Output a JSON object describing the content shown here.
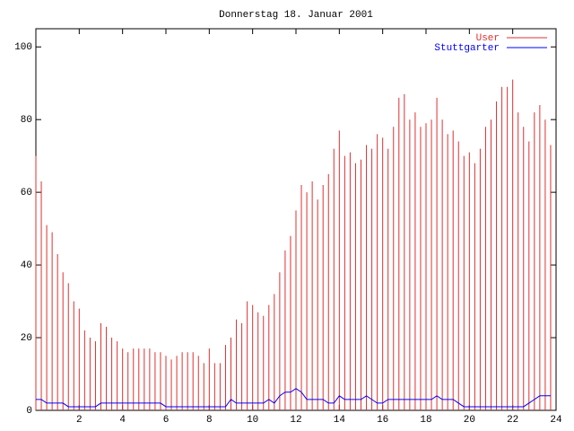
{
  "chart_data": {
    "type": "impulses-line",
    "title": "Donnerstag 18. Januar 2001",
    "x": [
      0,
      0.25,
      0.5,
      0.75,
      1,
      1.25,
      1.5,
      1.75,
      2,
      2.25,
      2.5,
      2.75,
      3,
      3.25,
      3.5,
      3.75,
      4,
      4.25,
      4.5,
      4.75,
      5,
      5.25,
      5.5,
      5.75,
      6,
      6.25,
      6.5,
      6.75,
      7,
      7.25,
      7.5,
      7.75,
      8,
      8.25,
      8.5,
      8.75,
      9,
      9.25,
      9.5,
      9.75,
      10,
      10.25,
      10.5,
      10.75,
      11,
      11.25,
      11.5,
      11.75,
      12,
      12.25,
      12.5,
      12.75,
      13,
      13.25,
      13.5,
      13.75,
      14,
      14.25,
      14.5,
      14.75,
      15,
      15.25,
      15.5,
      15.75,
      16,
      16.25,
      16.5,
      16.75,
      17,
      17.25,
      17.5,
      17.75,
      18,
      18.25,
      18.5,
      18.75,
      19,
      19.25,
      19.5,
      19.75,
      20,
      20.25,
      20.5,
      20.75,
      21,
      21.25,
      21.5,
      21.75,
      22,
      22.25,
      22.5,
      22.75,
      23,
      23.25,
      23.5,
      23.75
    ],
    "series": [
      {
        "name": "User",
        "color": "#e03030",
        "style": "impulses",
        "values": [
          70,
          63,
          51,
          49,
          43,
          38,
          35,
          30,
          28,
          22,
          20,
          19,
          24,
          23,
          20,
          19,
          17,
          16,
          17,
          17,
          17,
          17,
          16,
          16,
          15,
          14,
          15,
          16,
          16,
          16,
          15,
          13,
          17,
          13,
          13,
          18,
          20,
          25,
          24,
          30,
          29,
          27,
          26,
          29,
          32,
          38,
          44,
          48,
          55,
          62,
          60,
          63,
          58,
          62,
          65,
          72,
          77,
          70,
          71,
          68,
          69,
          73,
          72,
          76,
          75,
          72,
          78,
          86,
          87,
          80,
          82,
          78,
          79,
          80,
          86,
          80,
          76,
          77,
          74,
          70,
          71,
          68,
          72,
          78,
          80,
          85,
          89,
          89,
          91,
          82,
          78,
          74,
          82,
          84,
          80,
          73
        ]
      },
      {
        "name": "Stuttgarter",
        "color": "#0000ff",
        "style": "line",
        "values": [
          3,
          3,
          2,
          2,
          2,
          2,
          1,
          1,
          1,
          1,
          1,
          1,
          2,
          2,
          2,
          2,
          2,
          2,
          2,
          2,
          2,
          2,
          2,
          2,
          1,
          1,
          1,
          1,
          1,
          1,
          1,
          1,
          1,
          1,
          1,
          1,
          3,
          2,
          2,
          2,
          2,
          2,
          2,
          3,
          2,
          4,
          5,
          5,
          6,
          5,
          3,
          3,
          3,
          3,
          2,
          2,
          4,
          3,
          3,
          3,
          3,
          4,
          3,
          2,
          2,
          3,
          3,
          3,
          3,
          3,
          3,
          3,
          3,
          3,
          4,
          3,
          3,
          3,
          2,
          1,
          1,
          1,
          1,
          1,
          1,
          1,
          1,
          1,
          1,
          1,
          1,
          2,
          3,
          4,
          4,
          4
        ]
      }
    ],
    "xlim": [
      0,
      24
    ],
    "xticks": [
      2,
      4,
      6,
      8,
      10,
      12,
      14,
      16,
      18,
      20,
      22,
      24
    ],
    "ylim": [
      0,
      105
    ],
    "yticks": [
      0,
      20,
      40,
      60,
      80,
      100
    ],
    "legend": "upper right"
  }
}
